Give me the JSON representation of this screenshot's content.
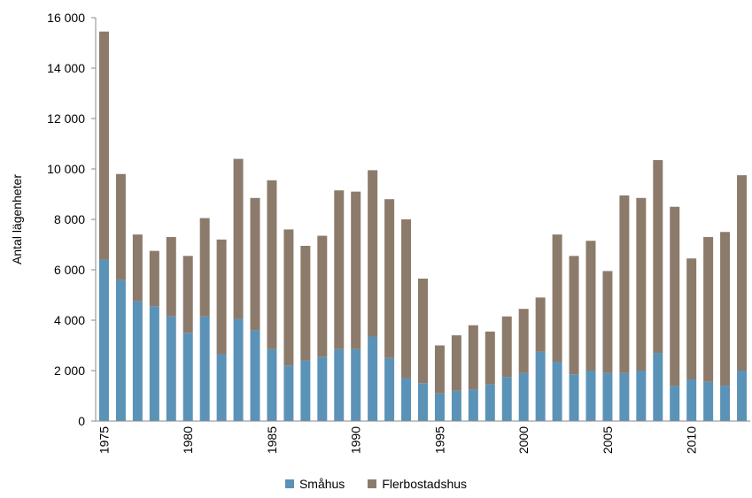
{
  "chart_data": {
    "type": "bar",
    "stacked": true,
    "ylabel": "Antal lägenheter",
    "ylim": [
      0,
      16000
    ],
    "yticks": [
      0,
      2000,
      4000,
      6000,
      8000,
      10000,
      12000,
      14000,
      16000
    ],
    "ytick_labels": [
      "0",
      "2 000",
      "4 000",
      "6 000",
      "8 000",
      "10 000",
      "12 000",
      "14 000",
      "16 000"
    ],
    "categories": [
      1975,
      1976,
      1977,
      1978,
      1979,
      1980,
      1981,
      1982,
      1983,
      1984,
      1985,
      1986,
      1987,
      1988,
      1989,
      1990,
      1991,
      1992,
      1993,
      1994,
      1995,
      1996,
      1997,
      1998,
      1999,
      2000,
      2001,
      2002,
      2003,
      2004,
      2005,
      2006,
      2007,
      2008,
      2009,
      2010,
      2011,
      2012,
      2013
    ],
    "xtick_labels": [
      "1975",
      "1980",
      "1985",
      "1990",
      "1995",
      "2000",
      "2005",
      "2010"
    ],
    "series": [
      {
        "name": "Småhus",
        "color": "#5B93B8",
        "values": [
          6400,
          5600,
          4750,
          4550,
          4150,
          3500,
          4150,
          2650,
          4050,
          3600,
          2850,
          2200,
          2400,
          2550,
          2850,
          2850,
          3350,
          2500,
          1700,
          1500,
          1100,
          1200,
          1250,
          1450,
          1750,
          1900,
          2750,
          2350,
          1850,
          2000,
          1900,
          1900,
          2000,
          2700,
          1400,
          1650,
          1550,
          1400,
          2000
        ]
      },
      {
        "name": "Flerbostadshus",
        "color": "#8C7B6B",
        "values": [
          9050,
          4200,
          2650,
          2200,
          3150,
          3050,
          3900,
          4550,
          6350,
          5250,
          6700,
          5400,
          4550,
          4800,
          6300,
          6250,
          6600,
          6300,
          6300,
          4150,
          1900,
          2200,
          2550,
          2100,
          2400,
          2550,
          2150,
          5050,
          4700,
          5150,
          4050,
          7050,
          6850,
          7650,
          7100,
          4800,
          5750,
          6100,
          7750
        ]
      }
    ],
    "grid": false,
    "legend_position": "bottom"
  }
}
